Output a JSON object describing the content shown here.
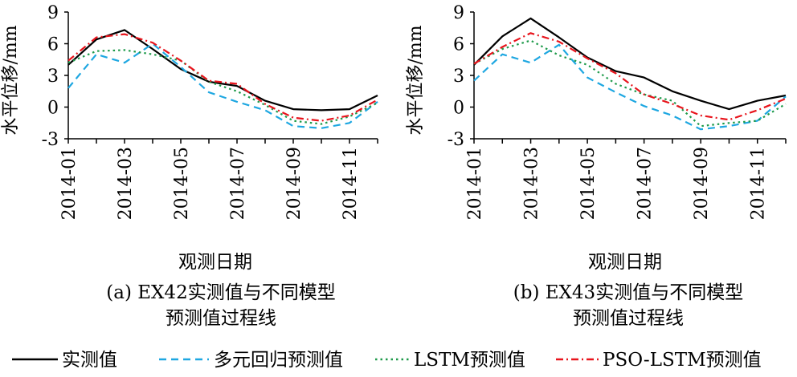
{
  "figure": {
    "legend": [
      {
        "label": "实测值",
        "color": "#000000",
        "dash": "solid"
      },
      {
        "label": "多元回归预测值",
        "color": "#1ea7e1",
        "dash": "dash"
      },
      {
        "label": "LSTM预测值",
        "color": "#1e9a4a",
        "dash": "dot"
      },
      {
        "label": "PSO-LSTM预测值",
        "color": "#e8141c",
        "dash": "dashdot"
      }
    ]
  },
  "chart_data": [
    {
      "type": "line",
      "caption_line1": "(a) EX42实测值与不同模型",
      "caption_line2": "预测值过程线",
      "xlabel": "观测日期",
      "ylabel": "水平位移/mm",
      "ylim": [
        -3,
        9
      ],
      "yticks": [
        -3,
        0,
        3,
        6,
        9
      ],
      "x": [
        "2014-01",
        "2014-02",
        "2014-03",
        "2014-04",
        "2014-05",
        "2014-06",
        "2014-07",
        "2014-08",
        "2014-09",
        "2014-10",
        "2014-11",
        "2014-12"
      ],
      "xtick_labels": [
        "2014-01",
        "2014-03",
        "2014-05",
        "2014-07",
        "2014-09",
        "2014-11"
      ],
      "grid": false,
      "series": [
        {
          "name": "实测值",
          "values": [
            4.0,
            6.4,
            7.3,
            5.5,
            3.6,
            2.4,
            2.0,
            0.6,
            -0.2,
            -0.3,
            -0.2,
            1.1
          ]
        },
        {
          "name": "多元回归预测值",
          "values": [
            1.8,
            5.0,
            4.2,
            6.0,
            3.8,
            1.4,
            0.5,
            -0.3,
            -1.8,
            -2.0,
            -1.5,
            0.5
          ]
        },
        {
          "name": "LSTM预测值",
          "values": [
            4.2,
            5.3,
            5.4,
            5.0,
            4.4,
            2.4,
            1.5,
            0.2,
            -1.3,
            -1.6,
            -0.9,
            0.4
          ]
        },
        {
          "name": "PSO-LSTM预测值",
          "values": [
            4.4,
            6.6,
            6.9,
            6.1,
            4.4,
            2.5,
            2.2,
            0.3,
            -1.0,
            -1.3,
            -0.8,
            0.7
          ]
        }
      ]
    },
    {
      "type": "line",
      "caption_line1": "(b) EX43实测值与不同模型",
      "caption_line2": "预测值过程线",
      "xlabel": "观测日期",
      "ylabel": "水平位移/mm",
      "ylim": [
        -3,
        9
      ],
      "yticks": [
        -3,
        0,
        3,
        6,
        9
      ],
      "x": [
        "2014-01",
        "2014-02",
        "2014-03",
        "2014-04",
        "2014-05",
        "2014-06",
        "2014-07",
        "2014-08",
        "2014-09",
        "2014-10",
        "2014-11",
        "2014-12"
      ],
      "xtick_labels": [
        "2014-01",
        "2014-03",
        "2014-05",
        "2014-07",
        "2014-09",
        "2014-11"
      ],
      "grid": false,
      "series": [
        {
          "name": "实测值",
          "values": [
            4.0,
            6.7,
            8.4,
            6.6,
            4.7,
            3.4,
            2.8,
            1.5,
            0.6,
            -0.2,
            0.6,
            1.1
          ]
        },
        {
          "name": "多元回归预测值",
          "values": [
            2.5,
            5.0,
            4.2,
            5.9,
            2.8,
            1.4,
            0.1,
            -0.8,
            -2.1,
            -1.8,
            -1.3,
            1.0
          ]
        },
        {
          "name": "LSTM预测值",
          "values": [
            4.1,
            5.5,
            6.3,
            4.9,
            4.0,
            2.2,
            1.2,
            0.6,
            -1.8,
            -1.5,
            -1.3,
            0.3
          ]
        },
        {
          "name": "PSO-LSTM预测值",
          "values": [
            4.1,
            5.7,
            7.0,
            6.2,
            4.6,
            3.2,
            1.2,
            0.3,
            -0.8,
            -1.2,
            -0.3,
            0.8
          ]
        }
      ]
    }
  ]
}
